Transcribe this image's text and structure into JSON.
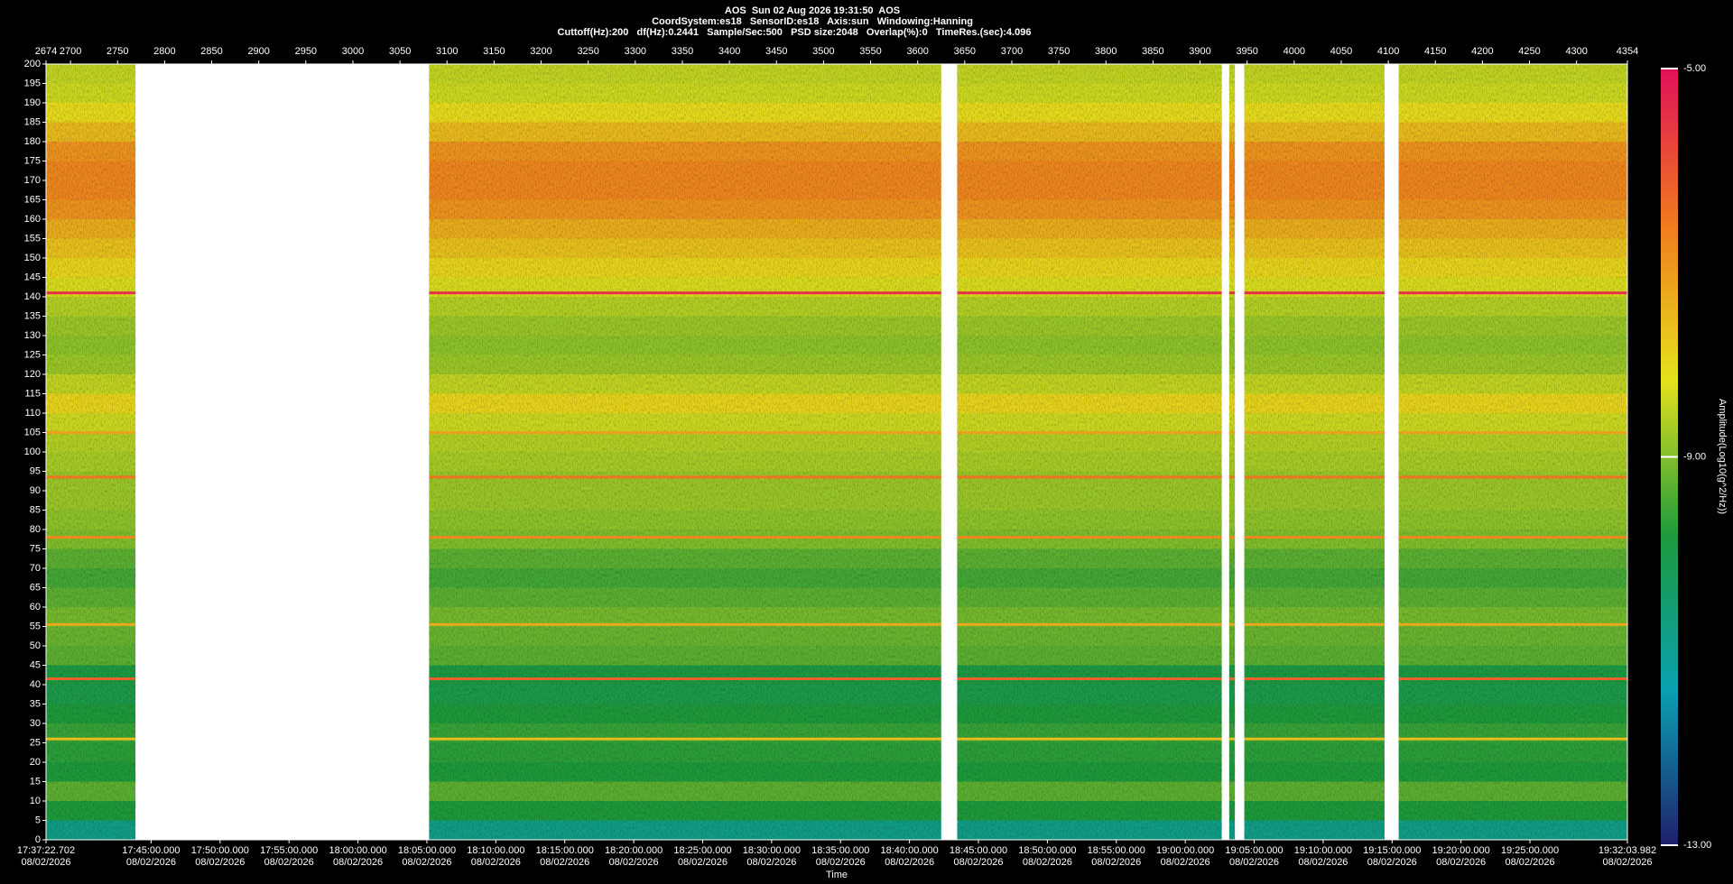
{
  "chart_data": {
    "type": "spectrogram",
    "title": "AOS  Sun 02 Aug 2026 19:31:50  AOS",
    "subtitle": "CoordSystem:es18   SensorID:es18   Axis:sun   Windowing:Hanning",
    "info": "Cuttoff(Hz):200   df(Hz):0.2441   Sample/Sec:500   PSD size:2048   Overlap(%):0   TimeRes.(sec):4.096",
    "x_label": "Time",
    "colorbar_label": "Amplitude(Log10(g^2/Hz))",
    "xlim": [
      "2026-08-02T17:37:22.702",
      "2026-08-02T19:32:03.982"
    ],
    "xticks": [
      {
        "value": "2026-08-02T17:37:22.702",
        "label": "17:37:22.702",
        "date": "08/02/2026"
      },
      {
        "value": "2026-08-02T17:45:00.000",
        "label": "17:45:00.000",
        "date": "08/02/2026"
      },
      {
        "value": "2026-08-02T17:50:00.000",
        "label": "17:50:00.000",
        "date": "08/02/2026"
      },
      {
        "value": "2026-08-02T17:55:00.000",
        "label": "17:55:00.000",
        "date": "08/02/2026"
      },
      {
        "value": "2026-08-02T18:00:00.000",
        "label": "18:00:00.000",
        "date": "08/02/2026"
      },
      {
        "value": "2026-08-02T18:05:00.000",
        "label": "18:05:00.000",
        "date": "08/02/2026"
      },
      {
        "value": "2026-08-02T18:10:00.000",
        "label": "18:10:00.000",
        "date": "08/02/2026"
      },
      {
        "value": "2026-08-02T18:15:00.000",
        "label": "18:15:00.000",
        "date": "08/02/2026"
      },
      {
        "value": "2026-08-02T18:20:00.000",
        "label": "18:20:00.000",
        "date": "08/02/2026"
      },
      {
        "value": "2026-08-02T18:25:00.000",
        "label": "18:25:00.000",
        "date": "08/02/2026"
      },
      {
        "value": "2026-08-02T18:30:00.000",
        "label": "18:30:00.000",
        "date": "08/02/2026"
      },
      {
        "value": "2026-08-02T18:35:00.000",
        "label": "18:35:00.000",
        "date": "08/02/2026"
      },
      {
        "value": "2026-08-02T18:40:00.000",
        "label": "18:40:00.000",
        "date": "08/02/2026"
      },
      {
        "value": "2026-08-02T18:45:00.000",
        "label": "18:45:00.000",
        "date": "08/02/2026"
      },
      {
        "value": "2026-08-02T18:50:00.000",
        "label": "18:50:00.000",
        "date": "08/02/2026"
      },
      {
        "value": "2026-08-02T18:55:00.000",
        "label": "18:55:00.000",
        "date": "08/02/2026"
      },
      {
        "value": "2026-08-02T19:00:00.000",
        "label": "19:00:00.000",
        "date": "08/02/2026"
      },
      {
        "value": "2026-08-02T19:05:00.000",
        "label": "19:05:00.000",
        "date": "08/02/2026"
      },
      {
        "value": "2026-08-02T19:10:00.000",
        "label": "19:10:00.000",
        "date": "08/02/2026"
      },
      {
        "value": "2026-08-02T19:15:00.000",
        "label": "19:15:00.000",
        "date": "08/02/2026"
      },
      {
        "value": "2026-08-02T19:20:00.000",
        "label": "19:20:00.000",
        "date": "08/02/2026"
      },
      {
        "value": "2026-08-02T19:25:00.000",
        "label": "19:25:00.000",
        "date": "08/02/2026"
      },
      {
        "value": "2026-08-02T19:32:03.982",
        "label": "19:32:03.982",
        "date": "08/02/2026"
      }
    ],
    "x2lim": [
      2674,
      4354
    ],
    "x2ticks": [
      2674,
      2700,
      2750,
      2800,
      2850,
      2900,
      2950,
      3000,
      3050,
      3100,
      3150,
      3200,
      3250,
      3300,
      3350,
      3400,
      3450,
      3500,
      3550,
      3600,
      3650,
      3700,
      3750,
      3800,
      3850,
      3900,
      3950,
      4000,
      4050,
      4100,
      4150,
      4200,
      4250,
      4300,
      4354
    ],
    "ylim": [
      0,
      200
    ],
    "yticks": [
      0,
      5,
      10,
      15,
      20,
      25,
      30,
      35,
      40,
      45,
      50,
      55,
      60,
      65,
      70,
      75,
      80,
      85,
      90,
      95,
      100,
      105,
      110,
      115,
      120,
      125,
      130,
      135,
      140,
      145,
      150,
      155,
      160,
      165,
      170,
      175,
      180,
      185,
      190,
      195,
      200
    ],
    "zlim": [
      -13,
      -5
    ],
    "colorbar_ticks": [
      {
        "value": -5,
        "label": "-5.00"
      },
      {
        "value": -9,
        "label": "-9.00"
      },
      {
        "value": -13,
        "label": "-13.00"
      }
    ],
    "colormap": [
      "#20206a",
      "#0aa0b0",
      "#1e9a3c",
      "#e6e21c",
      "#f07a1e",
      "#e0105a"
    ],
    "segments": [
      [
        2674,
        2769
      ],
      [
        3081,
        3625
      ],
      [
        3642,
        3923
      ],
      [
        3931,
        3937
      ],
      [
        3947,
        4096
      ],
      [
        4111,
        4354
      ]
    ],
    "freq_bins": [
      0,
      5,
      10,
      15,
      20,
      25,
      30,
      35,
      40,
      45,
      50,
      55,
      60,
      65,
      70,
      75,
      80,
      85,
      90,
      95,
      100,
      105,
      110,
      115,
      120,
      125,
      130,
      135,
      140,
      145,
      150,
      155,
      160,
      165,
      170,
      175,
      180,
      185,
      190,
      195,
      200
    ],
    "z": [
      -10.8,
      -9.8,
      -9.3,
      -9.8,
      -9.7,
      -9.6,
      -9.8,
      -10.0,
      -9.9,
      -9.3,
      -9.2,
      -9.1,
      -9.3,
      -9.5,
      -9.3,
      -9.0,
      -8.9,
      -8.8,
      -8.8,
      -8.7,
      -8.6,
      -8.4,
      -8.0,
      -8.5,
      -8.8,
      -8.9,
      -8.8,
      -8.6,
      -8.3,
      -8.0,
      -7.7,
      -7.4,
      -7.0,
      -6.8,
      -6.8,
      -7.0,
      -7.6,
      -8.1,
      -8.4,
      -8.5
    ],
    "tones": {
      "freqs": [
        141,
        93.5,
        78,
        55.5,
        105,
        26,
        41.5
      ],
      "values": [
        -5.5,
        -6.5,
        -6.8,
        -7.3,
        -7.2,
        -7.6,
        -6.2
      ]
    }
  }
}
